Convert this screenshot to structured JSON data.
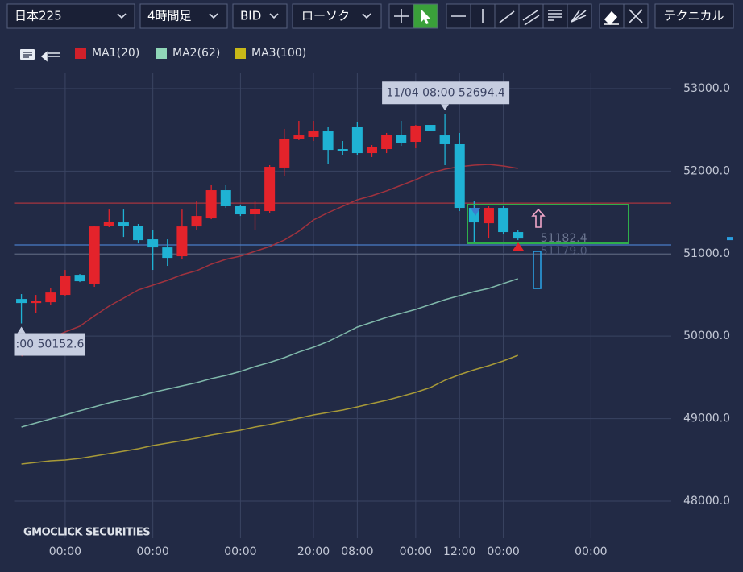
{
  "toolbar": {
    "selects": [
      "日本225",
      "4時間足",
      "BID",
      "ローソク"
    ],
    "technical": "テクニカル"
  },
  "chart_data": {
    "type": "candlestick",
    "watermark": "GMOCLICK SECURITIES",
    "categories": [
      null,
      null,
      null,
      "00:00",
      null,
      null,
      null,
      null,
      null,
      "00:00",
      null,
      null,
      null,
      null,
      null,
      "00:00",
      null,
      null,
      null,
      null,
      "20:00",
      null,
      null,
      "08:00",
      null,
      null,
      null,
      "00:00",
      null,
      null,
      "12:00",
      null,
      null,
      "00:00",
      null,
      null,
      null,
      null,
      null,
      "00:00",
      null,
      null,
      null,
      null,
      null
    ],
    "open": [
      50450,
      50401,
      50411,
      50499,
      50743,
      50636,
      51339,
      51378,
      51339,
      51173,
      51075,
      50968,
      51329,
      51427,
      51769,
      51574,
      51476,
      51515,
      52043,
      52394,
      52414,
      52482,
      52267,
      52531,
      52218,
      52267,
      52443,
      52355,
      52560,
      52433,
      52326,
      51554,
      51368,
      51554,
      51261,
      null,
      null,
      null,
      null,
      null,
      null,
      null,
      null,
      null,
      null
    ],
    "high": [
      50509,
      50499,
      50587,
      50802,
      50753,
      51339,
      51534,
      51534,
      51359,
      51290,
      51173,
      51534,
      51632,
      51828,
      51828,
      51593,
      51632,
      52072,
      52512,
      52609,
      52609,
      52531,
      52365,
      52590,
      52316,
      52463,
      52609,
      52560,
      52560,
      52694.4,
      52463,
      51632,
      51574,
      51574,
      51290,
      null,
      null,
      null,
      null,
      null,
      null,
      null,
      null,
      null,
      null
    ],
    "low": [
      50152.6,
      50284,
      50382,
      50489,
      50655,
      50597,
      51320,
      51202,
      51124,
      50802,
      50851,
      50929,
      51290,
      51417,
      51554,
      51456,
      51290,
      51486,
      51945,
      52375,
      52365,
      52082,
      52199,
      52189,
      52170,
      52218,
      52306,
      52277,
      52482,
      52072,
      51515,
      51144,
      51183,
      51241,
      51163,
      null,
      null,
      null,
      null,
      null,
      null,
      null,
      null,
      null,
      null
    ],
    "close": [
      50401,
      50431,
      50528,
      50733,
      50665,
      51329,
      51388,
      51339,
      51163,
      51075,
      50948,
      51329,
      51456,
      51769,
      51574,
      51476,
      51544,
      52052,
      52394,
      52433,
      52482,
      52257,
      52238,
      52218,
      52287,
      52443,
      52345,
      52551,
      52492,
      52326,
      51554,
      51378,
      51554,
      51261,
      51182.4,
      null,
      null,
      null,
      null,
      null,
      null,
      null,
      null,
      null,
      null
    ],
    "up_color": "#e4232b",
    "down_color": "#1fb2d4",
    "high_label": "11/04 08:00 52694.4",
    "low_label": ":00 50152.6",
    "last_labels": [
      "51182.4",
      "51179.0"
    ],
    "series": [
      {
        "name": "MA1(20)",
        "color": "#d0202a",
        "line_color": "#a0323e",
        "values": [
          49758,
          49875,
          49973,
          50051,
          50119,
          50246,
          50363,
          50461,
          50559,
          50617,
          50676,
          50744,
          50793,
          50871,
          50930,
          50969,
          51027,
          51086,
          51164,
          51271,
          51408,
          51496,
          51574,
          51652,
          51701,
          51760,
          51828,
          51896,
          51975,
          52023,
          52053,
          52072,
          52082,
          52062,
          52033,
          null,
          null,
          null,
          null,
          null,
          null,
          null,
          null,
          null,
          null
        ]
      },
      {
        "name": "MA2(62)",
        "color": "#8fd6b8",
        "line_color": "#7fb8aa",
        "values": [
          48898,
          48947,
          48996,
          49045,
          49094,
          49142,
          49191,
          49230,
          49269,
          49318,
          49357,
          49396,
          49435,
          49484,
          49523,
          49572,
          49631,
          49680,
          49738,
          49807,
          49865,
          49933,
          50021,
          50109,
          50168,
          50226,
          50275,
          50324,
          50383,
          50441,
          50490,
          50539,
          50578,
          50637,
          50695,
          null,
          null,
          null,
          null,
          null,
          null,
          null,
          null,
          null,
          null
        ]
      },
      {
        "name": "MA3(100)",
        "color": "#c8b818",
        "line_color": "#a89a38",
        "values": [
          48449,
          48469,
          48488,
          48498,
          48517,
          48547,
          48576,
          48605,
          48635,
          48674,
          48703,
          48732,
          48762,
          48801,
          48830,
          48859,
          48898,
          48928,
          48967,
          49006,
          49045,
          49074,
          49103,
          49142,
          49182,
          49221,
          49269,
          49318,
          49377,
          49465,
          49533,
          49592,
          49641,
          49699,
          49767,
          null,
          null,
          null,
          null,
          null,
          null,
          null,
          null,
          null,
          null
        ]
      }
    ],
    "hlines": [
      {
        "value": 51612,
        "color": "#a8343e"
      },
      {
        "value": 51105,
        "color": "#4a7cc6"
      },
      {
        "value": 50988,
        "color": "#6a7388"
      }
    ],
    "ylim": [
      47824,
      53195
    ],
    "yticks": [
      {
        "value": 48000,
        "label": "48000.0"
      },
      {
        "value": 49000,
        "label": "49000.0"
      },
      {
        "value": 50000,
        "label": "50000.0"
      },
      {
        "value": 51000,
        "label": "51000.0"
      },
      {
        "value": 52000,
        "label": "52000.0"
      },
      {
        "value": 53000,
        "label": "53000.0"
      }
    ],
    "grid": true
  }
}
